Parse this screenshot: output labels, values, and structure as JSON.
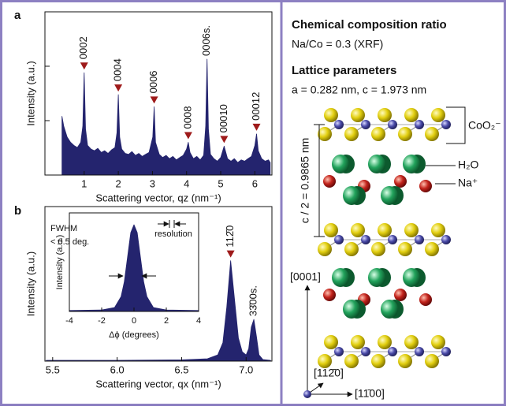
{
  "chart_data": [
    {
      "type": "area",
      "panel_label": "a",
      "x": [
        0.35,
        0.4,
        0.5,
        0.6,
        0.7,
        0.8,
        0.9,
        0.96,
        1.0,
        1.04,
        1.1,
        1.2,
        1.3,
        1.4,
        1.5,
        1.6,
        1.7,
        1.8,
        1.9,
        1.96,
        2.0,
        2.04,
        2.1,
        2.2,
        2.3,
        2.4,
        2.5,
        2.6,
        2.7,
        2.8,
        2.9,
        3.01,
        3.05,
        3.09,
        3.2,
        3.3,
        3.4,
        3.5,
        3.6,
        3.7,
        3.8,
        3.9,
        4.0,
        4.05,
        4.1,
        4.2,
        4.3,
        4.4,
        4.5,
        4.56,
        4.6,
        4.64,
        4.7,
        4.8,
        4.9,
        5.0,
        5.1,
        5.2,
        5.3,
        5.4,
        5.5,
        5.6,
        5.7,
        5.8,
        5.9,
        6.0,
        6.05,
        6.1,
        6.2,
        6.3,
        6.4,
        6.45
      ],
      "values": [
        12,
        8,
        5,
        4,
        3.5,
        3.2,
        4,
        8,
        76,
        7,
        3.5,
        3,
        2.8,
        3.1,
        2.6,
        2.8,
        2.5,
        2.9,
        3.2,
        6,
        30,
        5,
        3,
        2.5,
        2.4,
        2.7,
        2.3,
        2.5,
        2.2,
        2.4,
        2.6,
        5,
        18,
        4,
        2.4,
        2.1,
        2.3,
        2,
        2.2,
        1.9,
        2.1,
        2.3,
        3,
        4,
        2.6,
        2,
        2.2,
        1.9,
        2.3,
        8,
        135,
        7,
        2.4,
        2,
        1.8,
        2.1,
        3.4,
        2,
        1.8,
        2,
        1.7,
        1.9,
        1.8,
        2,
        2.2,
        3.5,
        5.7,
        2.8,
        2,
        1.8,
        1.9,
        1.7
      ],
      "color": "#24246e",
      "marker_color": "#9e1a1a",
      "xlim": [
        -0.15,
        6.5
      ],
      "xticks": [
        1,
        2,
        3,
        4,
        5,
        6
      ],
      "ylim": [
        1,
        1000
      ],
      "yscale": "log",
      "yticks": [
        1,
        10,
        100,
        1000
      ],
      "ytick_labels": false,
      "xlabel": "Scattering vector, qz (nm⁻¹)",
      "ylabel": "Intensity (a.u.)",
      "annotations": [
        {
          "text": "0002",
          "x": 1.0,
          "y": 76,
          "marker": true
        },
        {
          "text": "0004",
          "x": 2.0,
          "y": 30,
          "marker": true
        },
        {
          "text": "0006",
          "x": 3.05,
          "y": 18,
          "marker": true
        },
        {
          "text": "0008",
          "x": 4.05,
          "y": 4,
          "marker": true
        },
        {
          "text": "0006s.",
          "x": 4.6,
          "y": 135,
          "marker": false
        },
        {
          "text": "00010",
          "x": 5.1,
          "y": 3.4,
          "marker": true
        },
        {
          "text": "00012",
          "x": 6.05,
          "y": 5.7,
          "marker": true
        }
      ]
    },
    {
      "type": "area",
      "panel_label": "b",
      "x": [
        5.45,
        5.5,
        6.0,
        6.5,
        6.7,
        6.78,
        6.82,
        6.85,
        6.88,
        6.91,
        6.94,
        6.97,
        7.0,
        7.02,
        7.04,
        7.06,
        7.08,
        7.1,
        7.13,
        7.19
      ],
      "values": [
        0.5,
        0.5,
        0.5,
        0.8,
        1.5,
        4,
        12,
        35,
        65,
        40,
        15,
        6,
        4,
        8,
        22,
        27,
        16,
        4,
        1,
        0.5
      ],
      "color": "#24246e",
      "marker_color": "#9e1a1a",
      "xlim": [
        5.44,
        7.2
      ],
      "xticks": [
        5.5,
        {
          "value": 6,
          "label": "6.0"
        },
        6.5,
        {
          "value": 7,
          "label": "7.0"
        }
      ],
      "ylim": [
        0,
        100
      ],
      "xlabel": "Scattering vector, qx (nm⁻¹)",
      "ylabel": "Intensity (a.u.)",
      "annotations": [
        {
          "text": "112̄0",
          "x": 6.88,
          "y": 65,
          "marker": true
        },
        {
          "text": "33̄00s.",
          "x": 7.06,
          "y": 27,
          "marker": false
        }
      ]
    },
    {
      "type": "area",
      "x": [
        -4,
        -2,
        -1.2,
        -0.8,
        -0.6,
        -0.4,
        -0.2,
        0,
        0.2,
        0.4,
        0.6,
        0.8,
        1.2,
        2,
        4
      ],
      "values": [
        1,
        1.5,
        4,
        15,
        30,
        55,
        80,
        88,
        80,
        55,
        30,
        15,
        4,
        1.5,
        1
      ],
      "color": "#24246e",
      "xlim": [
        -4,
        4
      ],
      "xticks": [
        -4,
        -2,
        0,
        2,
        4
      ],
      "ylim": [
        0,
        100
      ],
      "xlabel": "Δϕ (degrees)",
      "ylabel": "Intensity (a.u.)",
      "notes": [
        "FWHM",
        "< 0.5 deg.",
        "resolution"
      ]
    }
  ],
  "structure": {
    "heading_composition": "Chemical composition ratio",
    "composition": "Na/Co = 0.3 (XRF)",
    "heading_lattice": "Lattice parameters",
    "lattice": "a = 0.282 nm, c = 1.973 nm",
    "label_layer": "CoO₂⁻",
    "label_water": "H₂O",
    "label_sodium": "Na⁺",
    "label_spacing": "c / 2 = 0.9865 nm",
    "axis_up": "[0001]",
    "axis_diag": "[112̄0]",
    "axis_right": "[11̄00]"
  }
}
